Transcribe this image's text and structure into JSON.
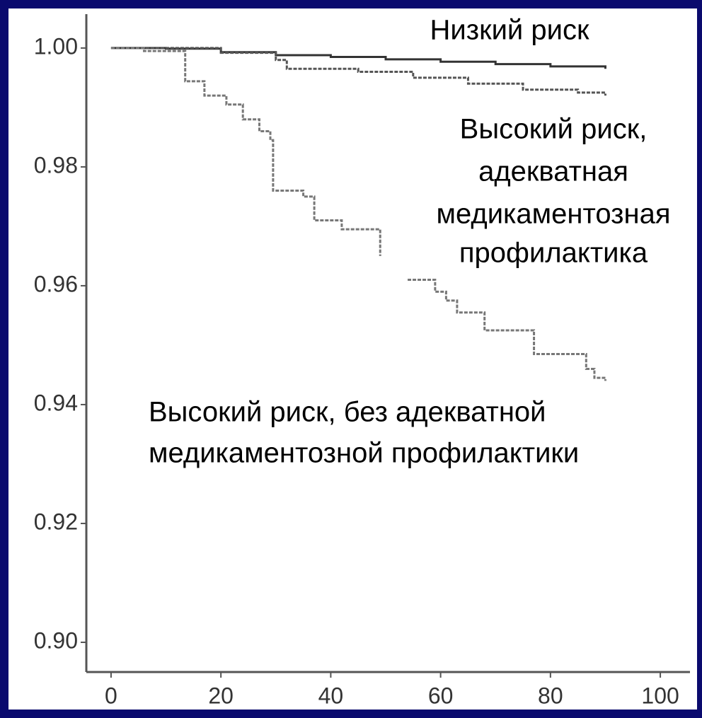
{
  "chart_data": {
    "type": "line",
    "step": true,
    "xlim": [
      -4.5,
      105.4
    ],
    "ylim": [
      0.895,
      1.0057
    ],
    "xticks": [
      0,
      20,
      40,
      60,
      80,
      100
    ],
    "yticks": [
      {
        "value": 1,
        "label": "1.00"
      },
      0.98,
      0.96,
      0.94,
      0.92,
      {
        "value": 0.9,
        "label": "0.90"
      }
    ],
    "series": [
      {
        "color": "#333333",
        "dash": false,
        "x": [
          0,
          10,
          20,
          30,
          40,
          50,
          60,
          70,
          80,
          90
        ],
        "values": [
          1.0,
          0.9999,
          0.9993,
          0.9988,
          0.9985,
          0.9981,
          0.9977,
          0.9973,
          0.9969,
          0.9965
        ]
      },
      {
        "color": "#555555",
        "dash": true,
        "x": [
          0,
          20,
          30,
          32,
          45,
          55,
          65,
          75,
          85,
          90
        ],
        "values": [
          1.0,
          0.9992,
          0.998,
          0.9965,
          0.996,
          0.995,
          0.994,
          0.993,
          0.9925,
          0.992
        ]
      },
      {
        "color": "#777777",
        "dash": true,
        "x": [
          0,
          6,
          13.5,
          17,
          21,
          24,
          27,
          29,
          29.5,
          35,
          37,
          42,
          49,
          50,
          54,
          59,
          61,
          63,
          68,
          77,
          86.5,
          88,
          90
        ],
        "values": [
          1.0,
          0.9995,
          0.9944,
          0.992,
          0.9905,
          0.988,
          0.986,
          0.9845,
          0.976,
          0.975,
          0.971,
          0.9695,
          0.965,
          null,
          0.961,
          0.959,
          0.9575,
          0.9555,
          0.9525,
          0.9485,
          0.946,
          0.9445,
          0.944
        ]
      }
    ],
    "annotations": [
      "Низкий риск",
      "Высокий риск,",
      "адекватная",
      "медикаментозная",
      "профилактика",
      "Высокий риск, без адекватной",
      "медикаментозной профилактики"
    ]
  }
}
